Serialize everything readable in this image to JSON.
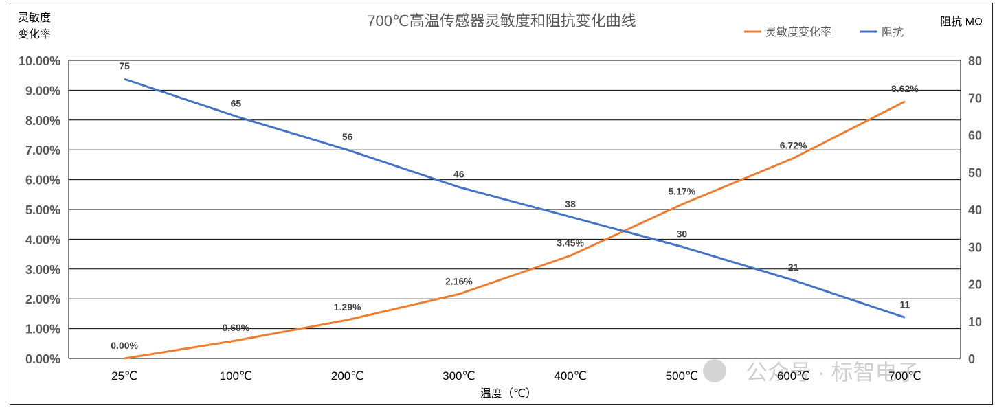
{
  "chart_data": {
    "type": "line",
    "title": "700℃高温传感器灵敏度和阻抗变化曲线",
    "xlabel": "温度（℃）",
    "ylabel_left": [
      "灵敏度",
      "变化率"
    ],
    "ylabel_right": "阻抗 MΩ",
    "categories": [
      "25℃",
      "100℃",
      "200℃",
      "300℃",
      "400℃",
      "500℃",
      "600℃",
      "700℃"
    ],
    "y_left": {
      "lim": [
        0,
        10
      ],
      "ticks": [
        "0.00%",
        "1.00%",
        "2.00%",
        "3.00%",
        "4.00%",
        "5.00%",
        "6.00%",
        "7.00%",
        "8.00%",
        "9.00%",
        "10.00%"
      ]
    },
    "y_right": {
      "lim": [
        0,
        80
      ],
      "ticks": [
        "0",
        "10",
        "20",
        "30",
        "40",
        "50",
        "60",
        "70",
        "80"
      ]
    },
    "grid": true,
    "legend_position": "top-right",
    "series": [
      {
        "name": "灵敏度变化率",
        "axis": "left",
        "color": "#ED7D31",
        "values": [
          0.0,
          0.6,
          1.29,
          2.16,
          3.45,
          5.17,
          6.72,
          8.62
        ],
        "labels": [
          "0.00%",
          "0.60%",
          "1.29%",
          "2.16%",
          "3.45%",
          "5.17%",
          "6.72%",
          "8.62%"
        ]
      },
      {
        "name": "阻抗",
        "axis": "right",
        "color": "#4472C4",
        "values": [
          75,
          65,
          56,
          46,
          38,
          30,
          21,
          11
        ],
        "labels": [
          "75",
          "65",
          "56",
          "46",
          "38",
          "30",
          "21",
          "11"
        ]
      }
    ]
  },
  "watermark": "公众号 · 标智电子"
}
